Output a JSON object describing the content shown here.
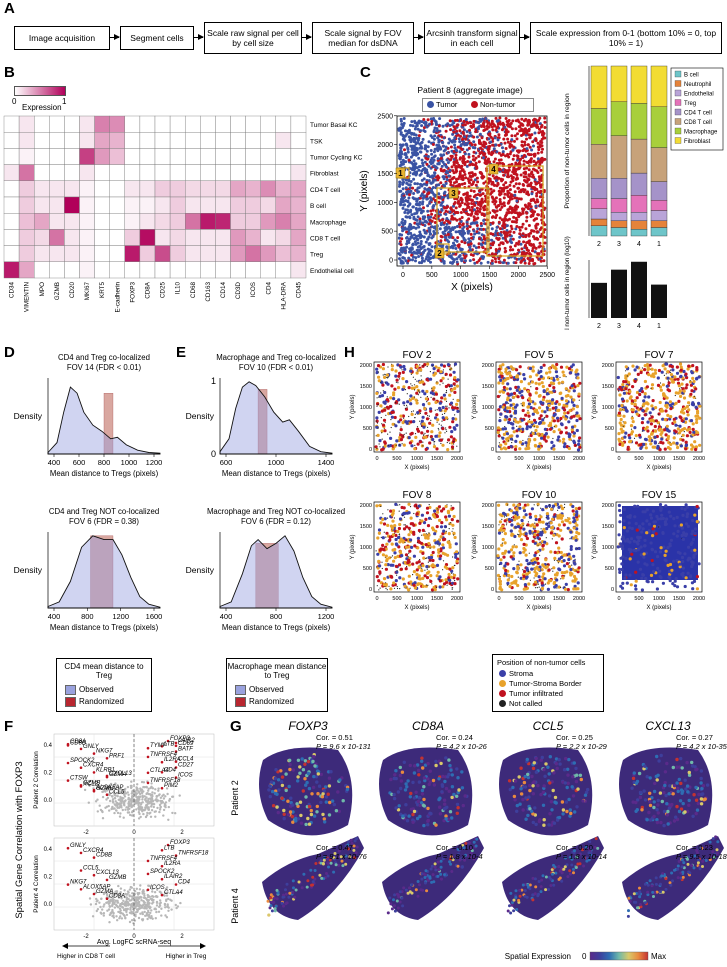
{
  "panelA": {
    "letter": "A",
    "steps": [
      "Image acquisition",
      "Segment cells",
      "Scale raw signal per cell by cell size",
      "Scale signal by FOV median for dsDNA",
      "Arcsinh transform signal in each cell",
      "Scale expression from 0-1 (bottom 10% = 0, top 10% = 1)"
    ]
  },
  "panelB": {
    "letter": "B",
    "legend_title": "Expression",
    "legend_min": "0",
    "legend_max": "1",
    "rows": [
      "Tumor Basal KC",
      "TSK",
      "Tumor Cycling KC",
      "Fibroblast",
      "CD4 T cell",
      "B cell",
      "Macrophage",
      "CD8 T cell",
      "Treg",
      "Endothelial cell"
    ],
    "cols": [
      "CD34",
      "VIMENTIN",
      "MPO",
      "GZMB",
      "CD20",
      "MKI67",
      "KRT5",
      "E-cadherin",
      "FOXP3",
      "CD8A",
      "CD25",
      "IL10",
      "CD68",
      "CD163",
      "CD14",
      "CD3D",
      "ICOS",
      "CD4",
      "HLA-DRA",
      "CD45"
    ],
    "values": [
      [
        0,
        0.1,
        0,
        0,
        0,
        0.1,
        0.5,
        0.45,
        0,
        0,
        0,
        0,
        0,
        0,
        0,
        0,
        0,
        0,
        0,
        0
      ],
      [
        0,
        0.1,
        0,
        0,
        0,
        0.1,
        0.35,
        0.3,
        0,
        0,
        0,
        0,
        0,
        0,
        0,
        0,
        0,
        0,
        0.1,
        0
      ],
      [
        0,
        0.05,
        0,
        0,
        0,
        0.75,
        0.4,
        0.25,
        0,
        0,
        0,
        0,
        0,
        0,
        0,
        0,
        0,
        0,
        0,
        0
      ],
      [
        0.1,
        0.55,
        0,
        0,
        0,
        0.1,
        0,
        0,
        0,
        0,
        0,
        0,
        0,
        0,
        0,
        0,
        0,
        0,
        0,
        0.1
      ],
      [
        0,
        0.2,
        0.1,
        0.1,
        0.1,
        0.05,
        0,
        0,
        0.1,
        0.1,
        0.2,
        0.2,
        0.15,
        0.15,
        0.15,
        0.35,
        0.3,
        0.45,
        0.3,
        0.35
      ],
      [
        0,
        0.2,
        0.1,
        0.1,
        1,
        0.05,
        0,
        0,
        0.05,
        0.05,
        0.1,
        0.2,
        0.1,
        0.1,
        0.1,
        0.2,
        0.2,
        0.15,
        0.35,
        0.3
      ],
      [
        0,
        0.25,
        0.35,
        0.1,
        0.1,
        0.05,
        0,
        0,
        0.05,
        0.1,
        0.15,
        0.2,
        0.55,
        0.9,
        0.85,
        0.2,
        0.2,
        0.4,
        0.5,
        0.35
      ],
      [
        0,
        0.2,
        0.15,
        0.55,
        0.1,
        0.05,
        0,
        0,
        0.2,
        0.95,
        0.1,
        0.15,
        0.1,
        0.1,
        0.1,
        0.4,
        0.3,
        0.1,
        0.15,
        0.35
      ],
      [
        0,
        0.2,
        0.1,
        0.1,
        0.1,
        0.05,
        0,
        0,
        0.9,
        0.2,
        0.7,
        0.2,
        0.1,
        0.1,
        0.1,
        0.4,
        0.55,
        0.4,
        0.25,
        0.3
      ],
      [
        0.9,
        0.35,
        0,
        0,
        0,
        0.05,
        0,
        0,
        0,
        0,
        0,
        0,
        0,
        0,
        0,
        0,
        0,
        0,
        0,
        0.1
      ]
    ]
  },
  "panelC": {
    "letter": "C",
    "title": "Patient 8 (aggregate image)",
    "legend": [
      {
        "label": "Tumor",
        "color": "#3a53a4"
      },
      {
        "label": "Non-tumor",
        "color": "#c0121f"
      }
    ],
    "xlabel": "X (pixels)",
    "ylabel": "Y (pixels)",
    "xticks": [
      "0",
      "500",
      "1000",
      "1500",
      "2000",
      "2500"
    ],
    "yticks": [
      "0",
      "500",
      "1000",
      "1500",
      "2000",
      "2500"
    ],
    "regions": [
      "1",
      "2",
      "3",
      "4"
    ],
    "bar_ylabel": "Proportion of non-tumor cells in region",
    "bar2_ylabel": "Total non-tumor cells in region (log10)",
    "bar_categories": [
      "2",
      "3",
      "4",
      "1"
    ],
    "bar_totals": [
      2.0,
      2.75,
      3.2,
      1.9
    ],
    "celltypes": [
      {
        "label": "B cell",
        "color": "#6ec5c9"
      },
      {
        "label": "Neutrophil",
        "color": "#e5833a"
      },
      {
        "label": "Endothelial",
        "color": "#b9a4d8"
      },
      {
        "label": "Treg",
        "color": "#e472b9"
      },
      {
        "label": "CD4 T cell",
        "color": "#a593c9"
      },
      {
        "label": "CD8 T cell",
        "color": "#c7a27a"
      },
      {
        "label": "Macrophage",
        "color": "#a8cf3b"
      },
      {
        "label": "Fibroblast",
        "color": "#f2dc33"
      }
    ],
    "proportions": [
      [
        0.06,
        0.04,
        0.06,
        0.06,
        0.12,
        0.2,
        0.21,
        0.25
      ],
      [
        0.05,
        0.04,
        0.05,
        0.08,
        0.12,
        0.25,
        0.2,
        0.21
      ],
      [
        0.04,
        0.05,
        0.05,
        0.1,
        0.13,
        0.2,
        0.21,
        0.22
      ],
      [
        0.05,
        0.04,
        0.06,
        0.06,
        0.11,
        0.2,
        0.24,
        0.24
      ]
    ]
  },
  "panelD": {
    "letter": "D",
    "top_title": "CD4 and Treg co-localized",
    "top_subtitle": "FOV 14 (FDR < 0.01)",
    "top_xticks": [
      "400",
      "600",
      "800",
      "1000",
      "1200"
    ],
    "bottom_title": "CD4 and Treg NOT co-localized",
    "bottom_subtitle": "FOV 6 (FDR = 0.38)",
    "bottom_xticks": [
      "400",
      "800",
      "1200",
      "1600"
    ],
    "ylabel": "Density",
    "xlabel": "Mean distance to Tregs (pixels)",
    "legend_title": "CD4 mean distance to Treg",
    "legend_items": [
      "Observed",
      "Randomized"
    ]
  },
  "panelE": {
    "letter": "E",
    "top_title": "Macrophage and Treg co-localized",
    "top_subtitle": "FOV 10 (FDR < 0.01)",
    "top_xticks": [
      "600",
      "1000",
      "1400"
    ],
    "bottom_title": "Macrophage and Treg NOT co-localized",
    "bottom_subtitle": "FOV 6 (FDR = 0.12)",
    "bottom_xticks": [
      "400",
      "800",
      "1200"
    ],
    "ylabel": "Density",
    "xlabel": "Mean distance to Tregs (pixels)",
    "legend_title": "Macrophage mean distance to Treg",
    "legend_items": [
      "Observed",
      "Randomized"
    ],
    "y_one": "1",
    "y_zero": "0"
  },
  "panelH": {
    "letter": "H",
    "fovs": [
      "FOV 2",
      "FOV 5",
      "FOV 7",
      "FOV 8",
      "FOV 10",
      "FOV 15"
    ],
    "xlabel": "X (pixels)",
    "ylabel": "Y (pixels)",
    "ticks": [
      "0",
      "500",
      "1000",
      "1500",
      "2000"
    ],
    "legend_title": "Position of non-tumor cells",
    "legend": [
      {
        "label": "Stroma",
        "color": "#3a3fa8"
      },
      {
        "label": "Tumor-Stroma Border",
        "color": "#e8a22b"
      },
      {
        "label": "Tumor infiltrated",
        "color": "#c0121f"
      },
      {
        "label": "Not called",
        "color": "#222222"
      }
    ]
  },
  "panelF": {
    "letter": "F",
    "ylabel": "Spatial Gene Correlation with FOXP3",
    "top_ylabel": "Patient 2 Correlation",
    "bottom_ylabel": "Patient 4 Correlation",
    "xlabel": "Avg. LogFC scRNA-seq",
    "left_arrow": "Higher in CD8 T cell",
    "right_arrow": "Higher in Treg",
    "xticks": [
      "-2",
      "0",
      "2"
    ],
    "yticks": [
      "0.0",
      "0.2",
      "0.4"
    ],
    "top_genes": [
      "FOXP3",
      "LTB",
      "BATF",
      "TNFRSF4",
      "IL2RA",
      "CD27",
      "CTLA4",
      "CXCL13",
      "CTSW",
      "GZMB",
      "ALOX5AP",
      "CCL5",
      "CD8A",
      "GNLY",
      "NKG7",
      "PRF1",
      "SPOCK2",
      "CXCR4",
      "KLRB1",
      "GZMA",
      "CD69",
      "XCL2",
      "GZMH",
      "CCL4",
      "CD8B",
      "CD4",
      "ICOS",
      "TNFRSF18",
      "PIM2",
      "LAIR2",
      "TYMP"
    ],
    "bottom_genes": [
      "FOXP3",
      "LTB",
      "TNFRSF18",
      "TNFRSF4",
      "IL2RA",
      "CCL5",
      "CXCL13",
      "GZMB",
      "NKG7",
      "ALOX5AP",
      "GZMA",
      "CD8A",
      "GNLY",
      "CXCR4",
      "CD8B",
      "SPOCK2",
      "ILAIR2",
      "CD4",
      "ICOS",
      "CTLA4"
    ]
  },
  "panelG": {
    "letter": "G",
    "genes": [
      "FOXP3",
      "CD8A",
      "CCL5",
      "CXCL13"
    ],
    "patients": [
      "Patient 2",
      "Patient 4"
    ],
    "p2_stats": [
      {
        "cor": "Cor. = 0.51",
        "p": "P = 9.6 x 10-131"
      },
      {
        "cor": "Cor. = 0.24",
        "p": "P = 4.2 x 10-26"
      },
      {
        "cor": "Cor. = 0.25",
        "p": "P = 2.2 x 10-29"
      },
      {
        "cor": "Cor. = 0.27",
        "p": "P = 4.2 x 10-35"
      }
    ],
    "p4_stats": [
      {
        "cor": "Cor. = 0.47",
        "p": "P = 9.1 x 10-76"
      },
      {
        "cor": "Cor. = 0.10",
        "p": "P = 1.8 x 10-4"
      },
      {
        "cor": "Cor. = 0.20",
        "p": "P = 1.8 x 10-14"
      },
      {
        "cor": "Cor. = 0.23",
        "p": "P = 9.5 x 10-18"
      }
    ],
    "legend_label": "Spatial Expression",
    "legend_min": "0",
    "legend_max": "Max"
  }
}
